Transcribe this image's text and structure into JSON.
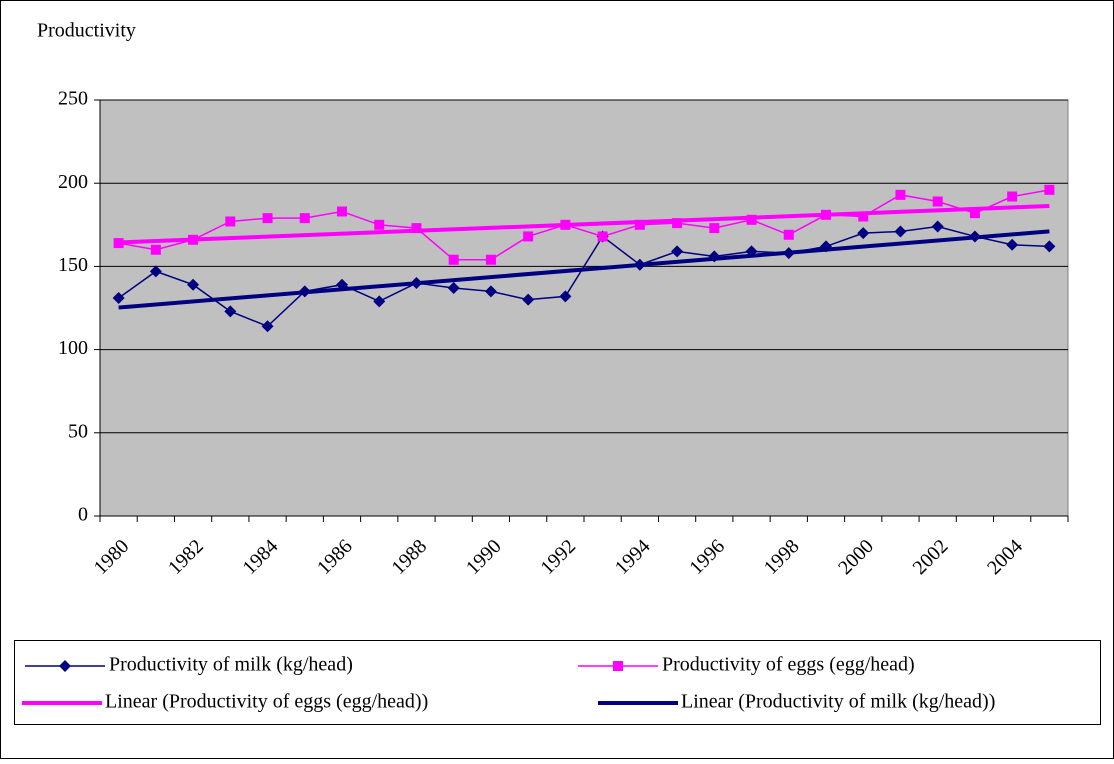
{
  "chart_data": {
    "type": "line",
    "title": "Productivity",
    "categories": [
      "1980",
      null,
      "1982",
      null,
      "1984",
      null,
      "1986",
      null,
      "1988",
      null,
      "1990",
      null,
      "1992",
      null,
      "1994",
      null,
      "1996",
      null,
      "1998",
      null,
      "2000",
      null,
      "2002",
      null,
      "2004",
      null
    ],
    "series": [
      {
        "name": "Productivity of milk (kg/head)",
        "color": "#000080",
        "marker": "diamond",
        "values": [
          131,
          147,
          139,
          123,
          114,
          135,
          139,
          129,
          140,
          137,
          135,
          130,
          132,
          168,
          151,
          159,
          156,
          159,
          158,
          162,
          170,
          171,
          174,
          168,
          163,
          162
        ],
        "trendline": {
          "name": "Linear (Productivity of milk (kg/head))",
          "color": "#000080"
        }
      },
      {
        "name": "Productivity of eggs (egg/head)",
        "color": "#ff00ff",
        "marker": "square",
        "values": [
          164,
          160,
          166,
          177,
          179,
          179,
          183,
          175,
          173,
          154,
          154,
          168,
          175,
          168,
          175,
          176,
          173,
          178,
          169,
          181,
          180,
          193,
          189,
          182,
          192,
          196
        ],
        "trendline": {
          "name": "Linear (Productivity of eggs (egg/head))",
          "color": "#ff00ff"
        }
      }
    ],
    "ylim": [
      0,
      250
    ],
    "yticks": [
      0,
      50,
      100,
      150,
      200,
      250
    ],
    "grid": true,
    "plot_background": "#c0c0c0",
    "legend": "bottom"
  }
}
